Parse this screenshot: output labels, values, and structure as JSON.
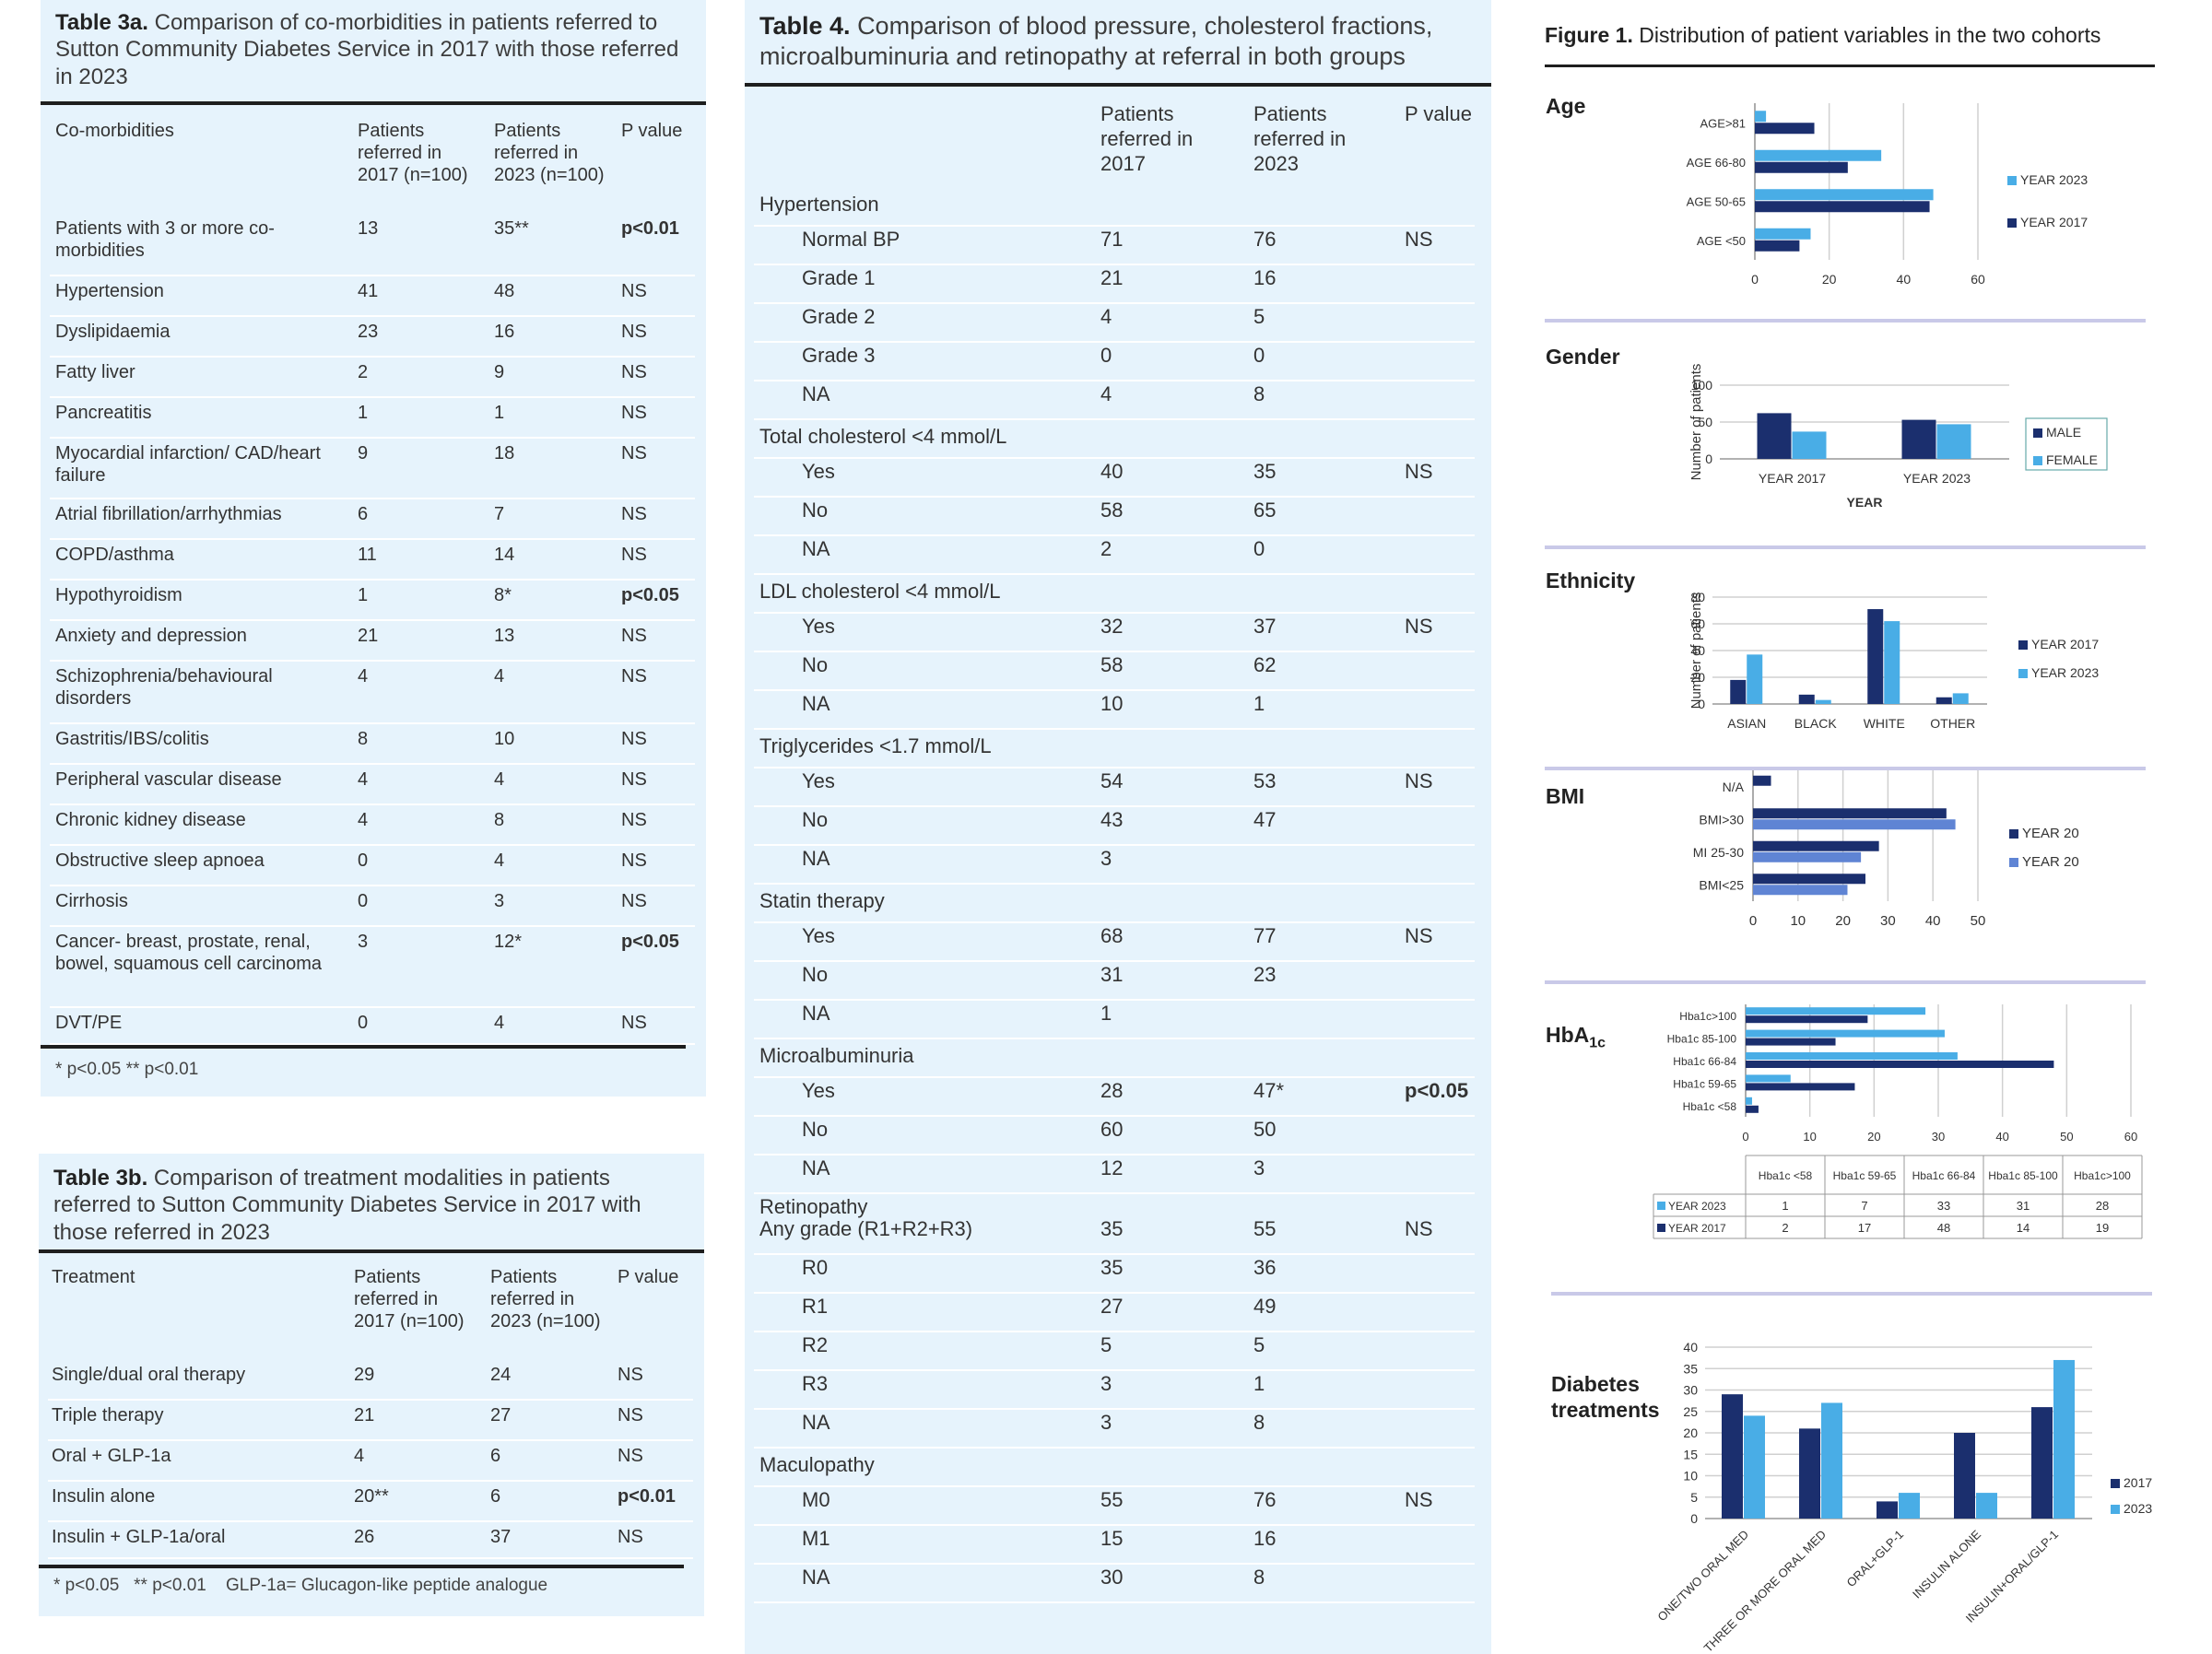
{
  "table3a": {
    "label": "Table 3a.",
    "caption": "Comparison of co-morbidities in patients referred to Sutton Community Diabetes Service in 2017 with those referred in 2023",
    "headers": [
      "Co-morbidities",
      "Patients referred in 2017 (n=100)",
      "Patients referred in 2023 (n=100)",
      "P value"
    ],
    "rows": [
      [
        "Patients with 3 or more co-morbidities",
        "13",
        "35**",
        "p<0.01"
      ],
      [
        "Hypertension",
        "41",
        "48",
        "NS"
      ],
      [
        "Dyslipidaemia",
        "23",
        "16",
        "NS"
      ],
      [
        "Fatty liver",
        "2",
        "9",
        "NS"
      ],
      [
        "Pancreatitis",
        "1",
        "1",
        "NS"
      ],
      [
        "Myocardial infarction/ CAD/heart failure",
        "9",
        "18",
        "NS"
      ],
      [
        "Atrial fibrillation/arrhythmias",
        "6",
        "7",
        "NS"
      ],
      [
        "COPD/asthma",
        "11",
        "14",
        "NS"
      ],
      [
        "Hypothyroidism",
        "1",
        "8*",
        "p<0.05"
      ],
      [
        "Anxiety and depression",
        "21",
        "13",
        "NS"
      ],
      [
        "Schizophrenia/behavioural disorders",
        "4",
        "4",
        "NS"
      ],
      [
        "Gastritis/IBS/colitis",
        "8",
        "10",
        "NS"
      ],
      [
        "Peripheral vascular disease",
        "4",
        "4",
        "NS"
      ],
      [
        "Chronic kidney disease",
        "4",
        "8",
        "NS"
      ],
      [
        "Obstructive sleep apnoea",
        "0",
        "4",
        "NS"
      ],
      [
        "Cirrhosis",
        "0",
        "3",
        "NS"
      ],
      [
        "Cancer- breast, prostate, renal, bowel, squamous cell carcinoma",
        "3",
        "12*",
        "p<0.05"
      ],
      [
        "DVT/PE",
        "0",
        "4",
        "NS"
      ]
    ],
    "footnote": "* p<0.05   ** p<0.01"
  },
  "table3b": {
    "label": "Table 3b.",
    "caption": "Comparison of treatment modalities in patients referred to Sutton Community Diabetes Service in 2017 with those referred in 2023",
    "headers": [
      "Treatment",
      "Patients referred in 2017 (n=100)",
      "Patients referred in 2023 (n=100)",
      "P value"
    ],
    "rows": [
      [
        "Single/dual oral therapy",
        "29",
        "24",
        "NS"
      ],
      [
        "Triple therapy",
        "21",
        "27",
        "NS"
      ],
      [
        "Oral + GLP-1a",
        "4",
        "6",
        "NS"
      ],
      [
        "Insulin alone",
        "20**",
        "6",
        "p<0.01"
      ],
      [
        "Insulin + GLP-1a/oral",
        "26",
        "37",
        "NS"
      ]
    ],
    "footnote": "* p<0.05   ** p<0.01    GLP-1a= Glucagon-like peptide analogue"
  },
  "table4": {
    "label": "Table 4.",
    "caption": "Comparison of blood pressure, cholesterol fractions, microalbuminuria and retinopathy at referral in both groups",
    "headers": [
      "",
      "Patients referred in 2017",
      "Patients referred in 2023",
      "P value"
    ],
    "rows": [
      {
        "label": "Hypertension",
        "group": true
      },
      {
        "label": "Normal BP",
        "a": "71",
        "b": "76",
        "p": "NS"
      },
      {
        "label": "Grade 1",
        "a": "21",
        "b": "16"
      },
      {
        "label": "Grade 2",
        "a": "4",
        "b": "5"
      },
      {
        "label": "Grade 3",
        "a": "0",
        "b": "0"
      },
      {
        "label": "NA",
        "a": "4",
        "b": "8"
      },
      {
        "label": "Total cholesterol <4 mmol/L",
        "group": true
      },
      {
        "label": "Yes",
        "a": "40",
        "b": "35",
        "p": "NS"
      },
      {
        "label": "No",
        "a": "58",
        "b": "65"
      },
      {
        "label": "NA",
        "a": "2",
        "b": "0"
      },
      {
        "label": "LDL cholesterol <4 mmol/L",
        "group": true
      },
      {
        "label": "Yes",
        "a": "32",
        "b": "37",
        "p": "NS"
      },
      {
        "label": "No",
        "a": "58",
        "b": "62"
      },
      {
        "label": "NA",
        "a": "10",
        "b": "1"
      },
      {
        "label": "Triglycerides <1.7 mmol/L",
        "group": true
      },
      {
        "label": "Yes",
        "a": "54",
        "b": "53",
        "p": "NS"
      },
      {
        "label": "No",
        "a": "43",
        "b": "47"
      },
      {
        "label": "NA",
        "a": "3",
        "b": ""
      },
      {
        "label": "Statin therapy",
        "group": true
      },
      {
        "label": "Yes",
        "a": "68",
        "b": "77",
        "p": "NS"
      },
      {
        "label": "No",
        "a": "31",
        "b": "23"
      },
      {
        "label": "NA",
        "a": "1",
        "b": ""
      },
      {
        "label": "Microalbuminuria",
        "group": true
      },
      {
        "label": "Yes",
        "a": "28",
        "b": "47*",
        "p": "p<0.05"
      },
      {
        "label": "No",
        "a": "60",
        "b": "50"
      },
      {
        "label": "NA",
        "a": "12",
        "b": "3"
      },
      {
        "label": "Retinopathy",
        "label2": "Any grade (R1+R2+R3)",
        "a": "35",
        "b": "55",
        "p": "NS",
        "retino": true
      },
      {
        "label": "R0",
        "a": "35",
        "b": "36"
      },
      {
        "label": "R1",
        "a": "27",
        "b": "49"
      },
      {
        "label": "R2",
        "a": "5",
        "b": "5"
      },
      {
        "label": "R3",
        "a": "3",
        "b": "1"
      },
      {
        "label": "NA",
        "a": "3",
        "b": "8"
      },
      {
        "label": "Maculopathy",
        "group": true
      },
      {
        "label": "M0",
        "a": "55",
        "b": "76",
        "p": "NS"
      },
      {
        "label": "M1",
        "a": "15",
        "b": "16"
      },
      {
        "label": "NA",
        "a": "30",
        "b": "8"
      }
    ]
  },
  "figure1": {
    "label": "Figure 1.",
    "caption": "Distribution of patient variables in the two cohorts",
    "colors": {
      "dark": "#1b2f6e",
      "light": "#49ade6",
      "mid": "#5f84d4"
    },
    "sections": {
      "age": "Age",
      "gender": "Gender",
      "ethnicity": "Ethnicity",
      "bmi": "BMI",
      "hba1c": "HbA",
      "hba1c_sub": "1c",
      "treatments": "Diabetes treatments"
    }
  },
  "chart_data": [
    {
      "id": "age",
      "type": "bar",
      "orientation": "horizontal",
      "categories": [
        "AGE>81",
        "AGE 66-80",
        "AGE 50-65",
        "AGE <50"
      ],
      "series": [
        {
          "name": "YEAR 2023",
          "values": [
            3,
            34,
            48,
            15
          ]
        },
        {
          "name": "YEAR 2017",
          "values": [
            16,
            25,
            47,
            12
          ]
        }
      ],
      "ticks": [
        0,
        20,
        40,
        60
      ],
      "xlim": [
        0,
        60
      ],
      "legend": "right"
    },
    {
      "id": "gender",
      "type": "bar",
      "categories": [
        "YEAR 2017",
        "YEAR 2023"
      ],
      "series": [
        {
          "name": "MALE",
          "values": [
            62,
            53
          ]
        },
        {
          "name": "FEMALE",
          "values": [
            37,
            47
          ]
        }
      ],
      "ylabel": "Number of patients",
      "xlabel": "YEAR",
      "ticks": [
        0,
        50,
        100
      ],
      "ylim": [
        0,
        100
      ],
      "legend": "right"
    },
    {
      "id": "ethnicity",
      "type": "bar",
      "categories": [
        "ASIAN",
        "BLACK",
        "WHITE",
        "OTHER"
      ],
      "series": [
        {
          "name": "YEAR 2017",
          "values": [
            18,
            7,
            71,
            5
          ]
        },
        {
          "name": "YEAR 2023",
          "values": [
            37,
            3,
            62,
            8
          ]
        }
      ],
      "ylabel": "Number of patients",
      "ticks": [
        0,
        20,
        40,
        60,
        80
      ],
      "ylim": [
        0,
        80
      ],
      "legend": "right"
    },
    {
      "id": "bmi",
      "type": "bar",
      "orientation": "horizontal",
      "categories": [
        "N/A",
        "BMI>30",
        "MI 25-30",
        "BMI<25"
      ],
      "series": [
        {
          "name": "YEAR 20",
          "values": [
            4,
            43,
            28,
            25
          ]
        },
        {
          "name": "YEAR 20",
          "values": [
            0,
            45,
            24,
            21
          ]
        }
      ],
      "ticks": [
        0,
        10,
        20,
        30,
        40,
        50
      ],
      "xlim": [
        0,
        50
      ],
      "legend": "right"
    },
    {
      "id": "hba1c",
      "type": "bar",
      "orientation": "horizontal",
      "categories": [
        "Hba1c>100",
        "Hba1c 85-100",
        "Hba1c 66-84",
        "Hba1c 59-65",
        "Hba1c <58"
      ],
      "series": [
        {
          "name": "YEAR 2023",
          "values": [
            28,
            31,
            33,
            7,
            1
          ]
        },
        {
          "name": "YEAR 2017",
          "values": [
            19,
            14,
            48,
            17,
            2
          ]
        }
      ],
      "ticks": [
        0,
        10,
        20,
        30,
        40,
        50,
        60
      ],
      "xlim": [
        0,
        60
      ],
      "table": {
        "columns": [
          "Hba1c <58",
          "Hba1c 59-65",
          "Hba1c 66-84",
          "Hba1c 85-100",
          "Hba1c>100"
        ],
        "rows": [
          {
            "name": "YEAR 2023",
            "values": [
              "1",
              "7",
              "33",
              "31",
              "28"
            ]
          },
          {
            "name": "YEAR 2017",
            "values": [
              "2",
              "17",
              "48",
              "14",
              "19"
            ]
          }
        ]
      }
    },
    {
      "id": "treatments",
      "type": "bar",
      "categories": [
        "ONE/TWO ORAL MED",
        "THREE OR MORE ORAL MED",
        "ORAL+GLP-1",
        "INSULIN ALONE",
        "INSULIN+ORAL/GLP-1"
      ],
      "series": [
        {
          "name": "2017",
          "values": [
            29,
            21,
            4,
            20,
            26
          ]
        },
        {
          "name": "2023",
          "values": [
            24,
            27,
            6,
            6,
            37
          ]
        }
      ],
      "ticks": [
        0,
        5,
        10,
        15,
        20,
        25,
        30,
        35,
        40
      ],
      "ylim": [
        0,
        40
      ],
      "legend": "right"
    }
  ]
}
